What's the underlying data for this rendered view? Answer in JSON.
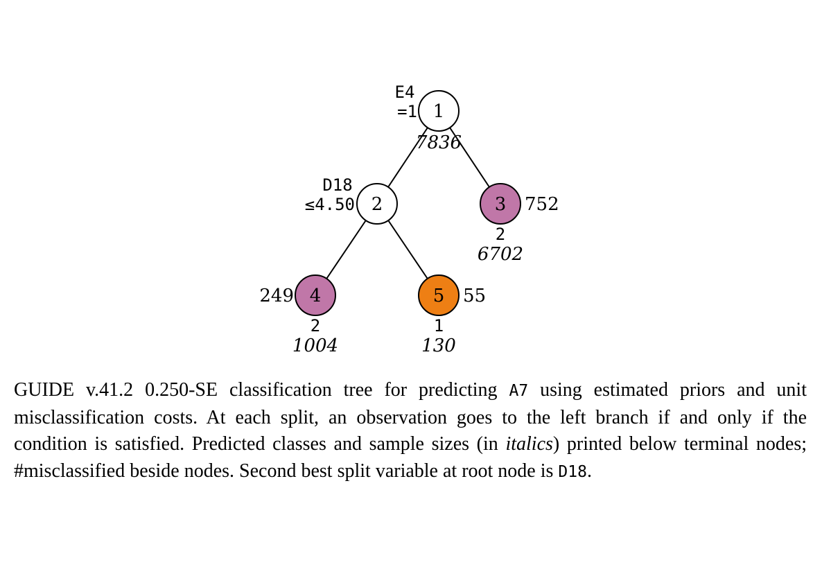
{
  "tree": {
    "nodes": [
      {
        "id": "1",
        "split_var": "E4",
        "split_cond": "=1",
        "sample_size": "7836",
        "terminal": false,
        "fill": "#ffffff"
      },
      {
        "id": "2",
        "split_var": "D18",
        "split_cond": "≤4.50",
        "terminal": false,
        "fill": "#ffffff"
      },
      {
        "id": "3",
        "terminal": true,
        "misclassified": "752",
        "predicted_class": "2",
        "sample_size": "6702",
        "fill": "#c077a8"
      },
      {
        "id": "4",
        "terminal": true,
        "misclassified": "249",
        "predicted_class": "2",
        "sample_size": "1004",
        "fill": "#c077a8"
      },
      {
        "id": "5",
        "terminal": true,
        "misclassified": "55",
        "predicted_class": "1",
        "sample_size": "130",
        "fill": "#ee7f14"
      }
    ],
    "edges": [
      {
        "from": "1",
        "to": "2"
      },
      {
        "from": "1",
        "to": "3"
      },
      {
        "from": "2",
        "to": "4"
      },
      {
        "from": "2",
        "to": "5"
      }
    ]
  },
  "caption": {
    "part1": "GUIDE v.41.2 0.250-SE classification tree for predicting ",
    "target": "A7",
    "part2": " using estimated priors and unit misclassification costs. At each split, an observation goes to the left branch if and only if the condition is satisfied. Predicted classes and sample sizes (in ",
    "italics_word": "italics",
    "part3": ") printed below terminal nodes; #misclassified beside nodes. Second best split variable at root node is ",
    "second_var": "D18",
    "part4": "."
  }
}
